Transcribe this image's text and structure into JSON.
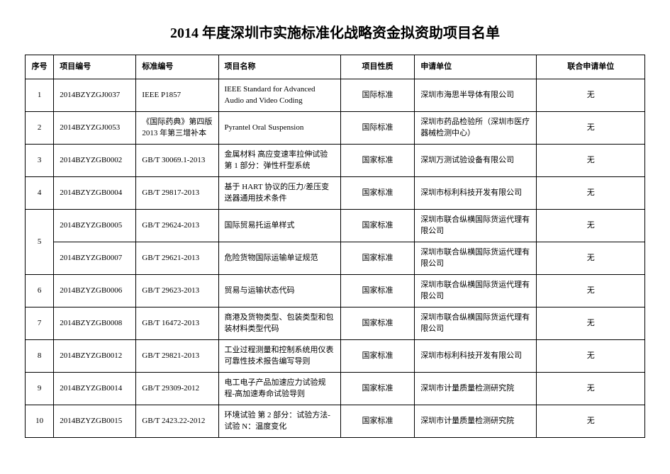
{
  "title": "2014 年度深圳市实施标准化战略资金拟资助项目名单",
  "columns": [
    "序号",
    "项目编号",
    "标准编号",
    "项目名称",
    "项目性质",
    "申请单位",
    "联合申请单位"
  ],
  "rows": [
    {
      "seq": "1",
      "pid": "2014BZYZGJ0037",
      "std": "IEEE P1857",
      "name": "IEEE Standard for Advanced Audio and Video Coding",
      "kind": "国际标准",
      "org": "深圳市海思半导体有限公司",
      "joint": "无"
    },
    {
      "seq": "2",
      "pid": "2014BZYZGJ0053",
      "std": "《国际药典》第四版2013 年第三增补本",
      "name": "Pyrantel Oral Suspension",
      "kind": "国际标准",
      "org": "深圳市药品检验所（深圳市医疗器械检测中心）",
      "joint": "无"
    },
    {
      "seq": "3",
      "pid": "2014BZYZGB0002",
      "std": "GB/T 30069.1-2013",
      "name": "金属材料 高应变速率拉伸试验 第 1 部分：弹性杆型系统",
      "kind": "国家标准",
      "org": "深圳万测试验设备有限公司",
      "joint": "无"
    },
    {
      "seq": "4",
      "pid": "2014BZYZGB0004",
      "std": "GB/T 29817-2013",
      "name": "基于 HART 协议的压力/差压变送器通用技术条件",
      "kind": "国家标准",
      "org": "深圳市标利科技开发有限公司",
      "joint": "无"
    },
    {
      "seq": "5",
      "pid": "2014BZYZGB0005",
      "std": "GB/T 29624-2013",
      "name": "国际贸易托运单样式",
      "kind": "国家标准",
      "org": "深圳市联合纵横国际货运代理有限公司",
      "joint": "无",
      "rowspan_seq": 2
    },
    {
      "seq": "",
      "pid": "2014BZYZGB0007",
      "std": "GB/T 29621-2013",
      "name": "危险货物国际运输单证规范",
      "kind": "国家标准",
      "org": "深圳市联合纵横国际货运代理有限公司",
      "joint": "无"
    },
    {
      "seq": "6",
      "pid": "2014BZYZGB0006",
      "std": "GB/T 29623-2013",
      "name": "贸易与运输状态代码",
      "kind": "国家标准",
      "org": "深圳市联合纵横国际货运代理有限公司",
      "joint": "无"
    },
    {
      "seq": "7",
      "pid": "2014BZYZGB0008",
      "std": "GB/T 16472-2013",
      "name": "商港及货物类型、包装类型和包装材料类型代码",
      "kind": "国家标准",
      "org": "深圳市联合纵横国际货运代理有限公司",
      "joint": "无"
    },
    {
      "seq": "8",
      "pid": "2014BZYZGB0012",
      "std": "GB/T 29821-2013",
      "name": "工业过程测量和控制系统用仪表可靠性技术报告编写导则",
      "kind": "国家标准",
      "org": "深圳市标利科技开发有限公司",
      "joint": "无"
    },
    {
      "seq": "9",
      "pid": "2014BZYZGB0014",
      "std": "GB/T 29309-2012",
      "name": "电工电子产品加速应力试验规程-高加速寿命试验导则",
      "kind": "国家标准",
      "org": "深圳市计量质量检测研究院",
      "joint": "无"
    },
    {
      "seq": "10",
      "pid": "2014BZYZGB0015",
      "std": "GB/T 2423.22-2012",
      "name": "环境试验 第 2 部分：试验方法-试验 N：温度变化",
      "kind": "国家标准",
      "org": "深圳市计量质量检测研究院",
      "joint": "无"
    }
  ]
}
